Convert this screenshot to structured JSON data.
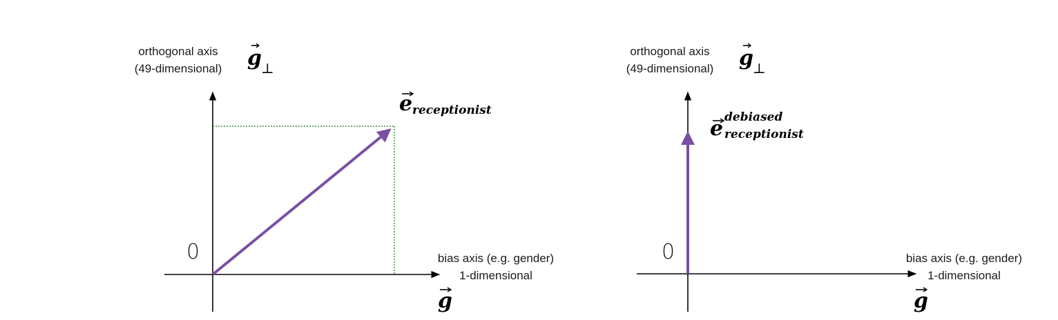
{
  "left_panel": {
    "y_axis_label_line1": "orthogonal axis",
    "y_axis_label_line2": "(49-dimensional)",
    "y_axis_symbol": "g",
    "y_axis_symbol_sub": "⊥",
    "x_axis_label_line1": "bias axis (e.g. gender)",
    "x_axis_label_line2": "1-dimensional",
    "x_axis_symbol": "g",
    "origin_label": "0",
    "vector_symbol": "e",
    "vector_subscript": "receptionist"
  },
  "right_panel": {
    "y_axis_label_line1": "orthogonal axis",
    "y_axis_label_line2": "(49-dimensional)",
    "y_axis_symbol": "g",
    "y_axis_symbol_sub": "⊥",
    "x_axis_label_line1": "bias axis (e.g. gender)",
    "x_axis_label_line2": "1-dimensional",
    "x_axis_symbol": "g",
    "origin_label": "0",
    "vector_symbol": "e",
    "vector_superscript": "debiased",
    "vector_subscript": "receptionist"
  },
  "colors": {
    "vector": "#7a4fa3",
    "projection": "#2e8b2e",
    "axis": "#000000"
  }
}
